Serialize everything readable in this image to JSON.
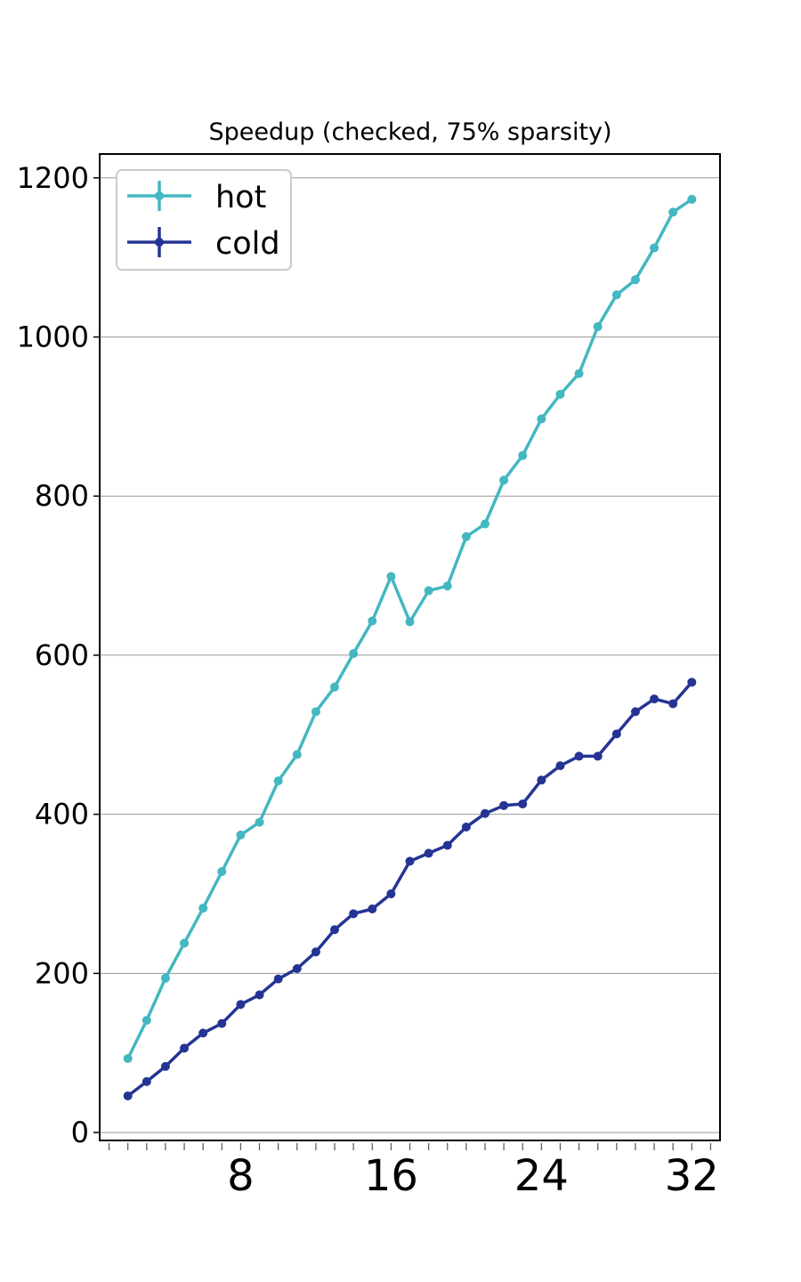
{
  "chart_data": {
    "type": "line",
    "title": "Speedup (checked, 75% sparsity)",
    "xlabel": "",
    "ylabel": "",
    "xlim": [
      0.5,
      33.5
    ],
    "ylim": [
      -10,
      1230
    ],
    "xticks": [
      8,
      16,
      24,
      32
    ],
    "yticks": [
      0,
      200,
      400,
      600,
      800,
      1000,
      1200
    ],
    "grid": "horizontal",
    "legend_position": "top-left",
    "x": [
      2,
      3,
      4,
      5,
      6,
      7,
      8,
      9,
      10,
      11,
      12,
      13,
      14,
      15,
      16,
      17,
      18,
      19,
      20,
      21,
      22,
      23,
      24,
      25,
      26,
      27,
      28,
      29,
      30,
      31,
      32
    ],
    "series": [
      {
        "name": "hot",
        "color": "#43b7c2",
        "values": [
          93,
          141,
          194,
          238,
          282,
          328,
          374,
          390,
          442,
          475,
          529,
          560,
          602,
          643,
          699,
          642,
          681,
          687,
          749,
          765,
          820,
          851,
          897,
          928,
          954,
          1013,
          1053,
          1072,
          1112,
          1157,
          1173
        ]
      },
      {
        "name": "cold",
        "color": "#253494",
        "values": [
          46,
          64,
          83,
          106,
          125,
          137,
          161,
          173,
          193,
          206,
          227,
          255,
          275,
          281,
          300,
          341,
          351,
          361,
          384,
          401,
          411,
          413,
          443,
          461,
          473,
          473,
          501,
          529,
          545,
          539,
          566
        ]
      }
    ]
  }
}
